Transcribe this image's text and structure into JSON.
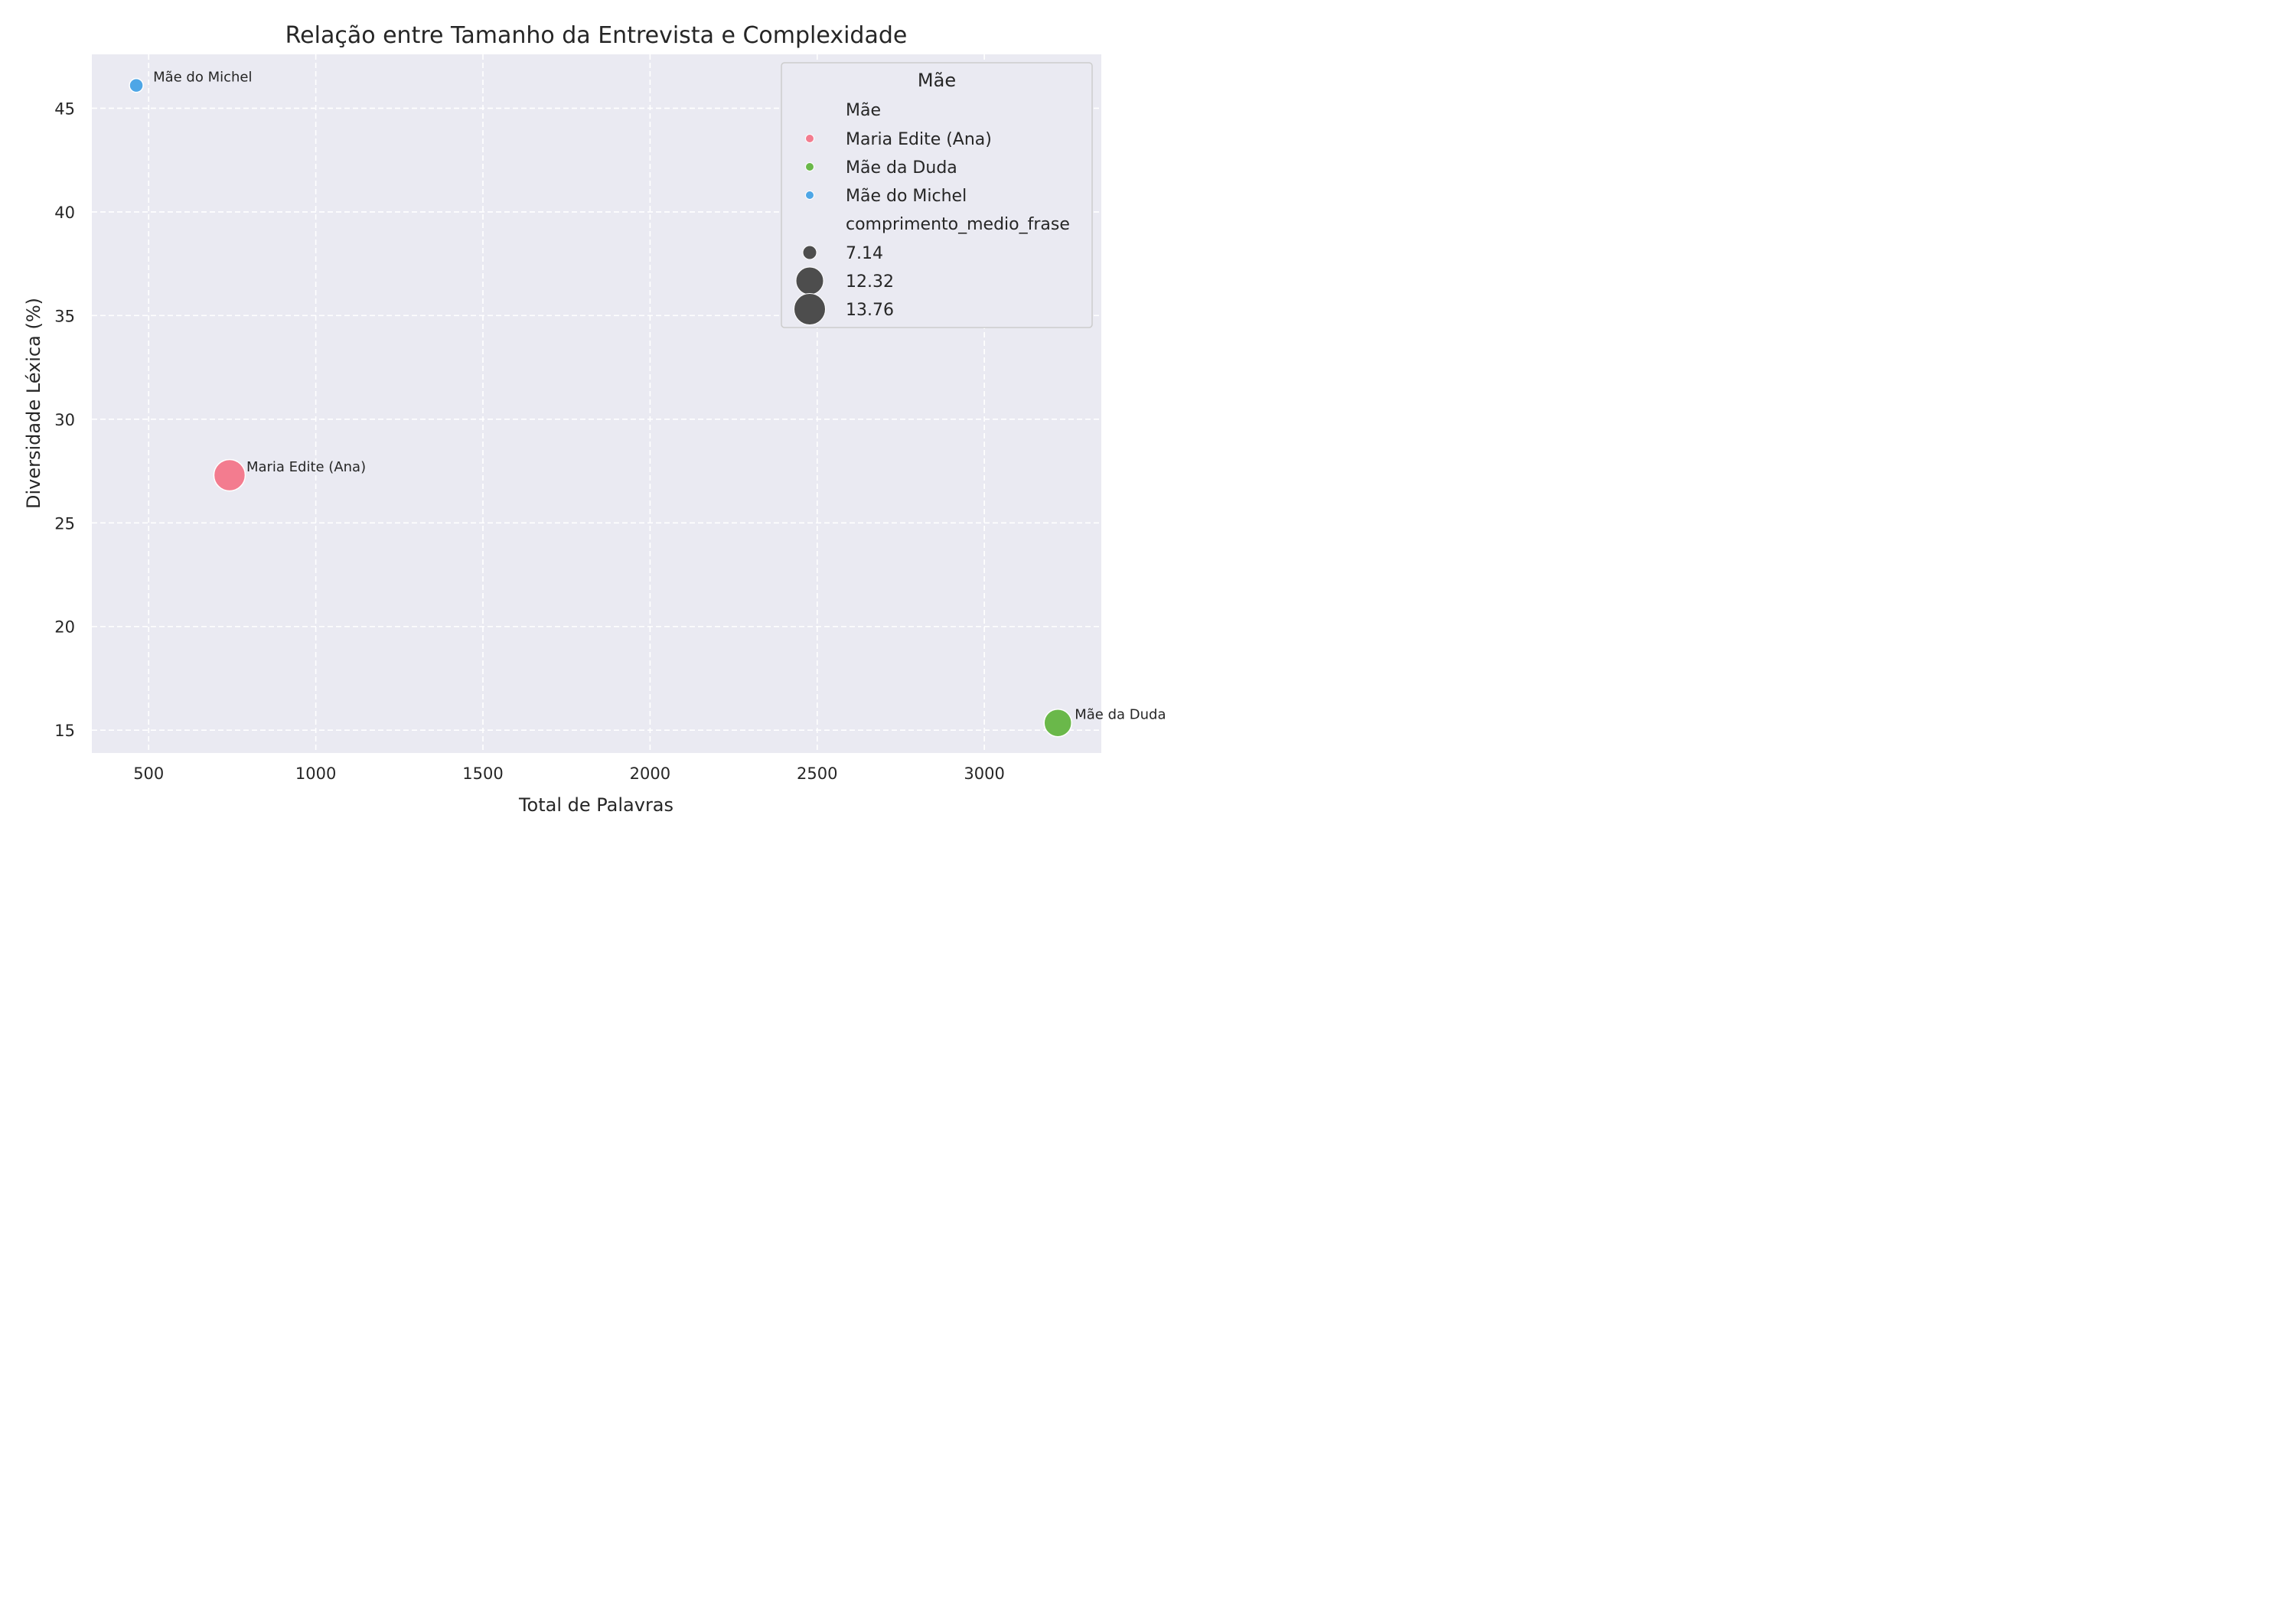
{
  "chart_data": {
    "type": "scatter",
    "title": "Relação entre Tamanho da Entrevista e Complexidade",
    "xlabel": "Total de Palavras",
    "ylabel": "Diversidade Léxica (%)",
    "xlim": [
      330,
      3350
    ],
    "ylim": [
      13.9,
      47.6
    ],
    "xticks": [
      500,
      1000,
      1500,
      2000,
      2500,
      3000
    ],
    "yticks": [
      15,
      20,
      25,
      30,
      35,
      40,
      45
    ],
    "grid": true,
    "legend_position": "top-right",
    "points": [
      {
        "label": "Maria Edite (Ana)",
        "x": 742,
        "y": 27.3,
        "comprimento_medio_frase": 13.76,
        "color": "#f37c8f"
      },
      {
        "label": "Mãe da Duda",
        "x": 3220,
        "y": 15.35,
        "comprimento_medio_frase": 12.32,
        "color": "#6ab84a"
      },
      {
        "label": "Mãe do Michel",
        "x": 463,
        "y": 46.1,
        "comprimento_medio_frase": 7.14,
        "color": "#4ea6e6"
      }
    ],
    "legend": {
      "title": "Mãe",
      "hue_header": "Mãe",
      "hue_entries": [
        {
          "label": "Maria Edite (Ana)",
          "color": "#f37c8f"
        },
        {
          "label": "Mãe da Duda",
          "color": "#6ab84a"
        },
        {
          "label": "Mãe do Michel",
          "color": "#4ea6e6"
        }
      ],
      "size_header": "comprimento_medio_frase",
      "size_entries": [
        {
          "label": "7.14",
          "value": 7.14
        },
        {
          "label": "12.32",
          "value": 12.32
        },
        {
          "label": "13.76",
          "value": 13.76
        }
      ]
    }
  }
}
